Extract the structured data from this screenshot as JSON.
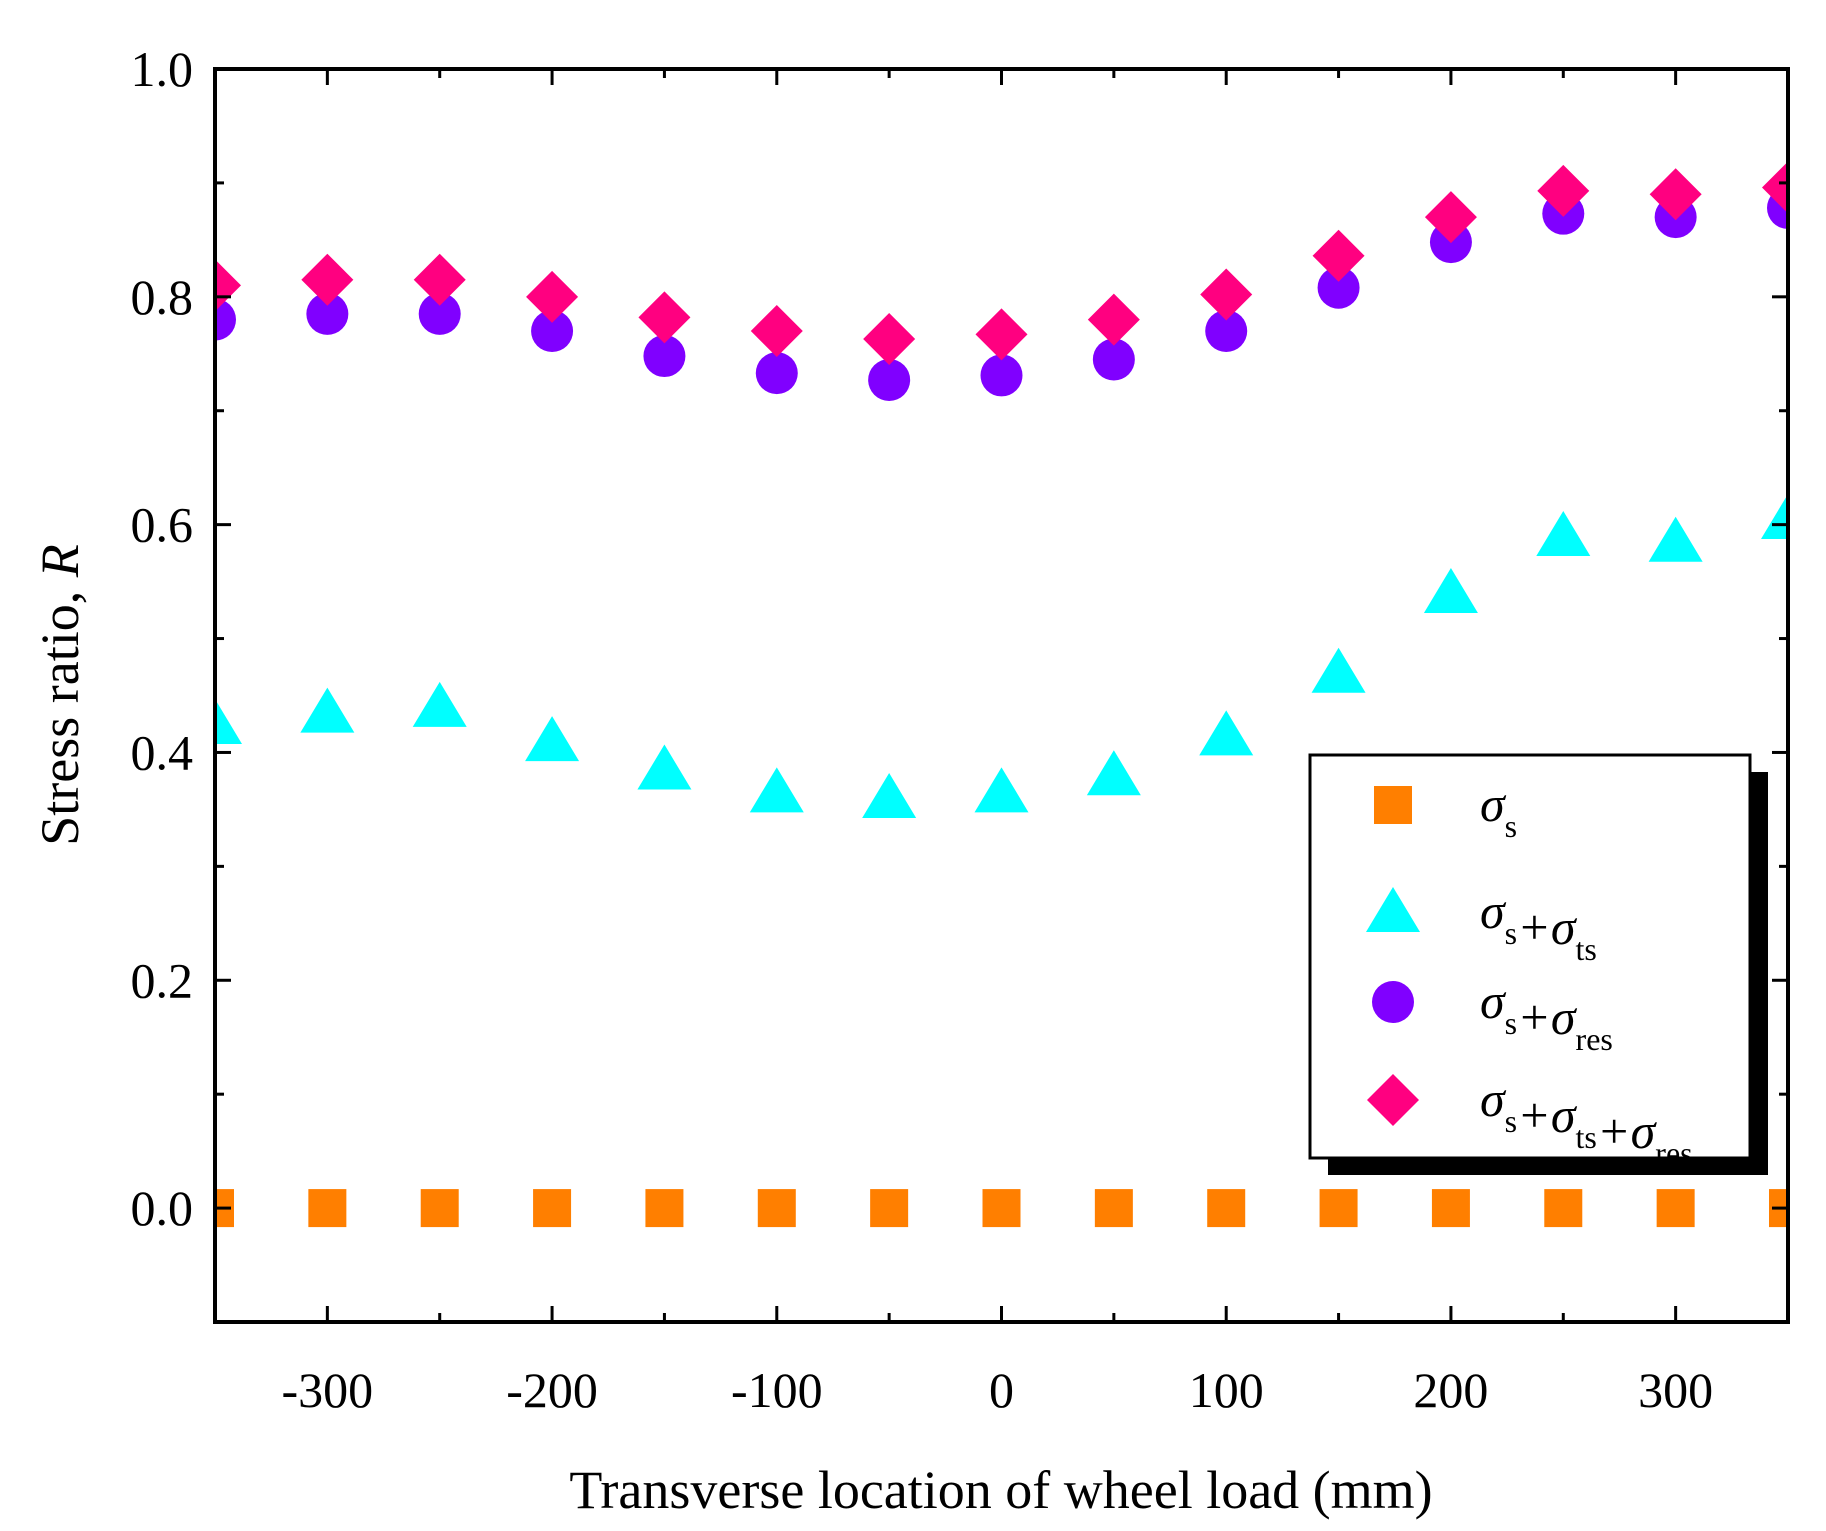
{
  "chart_data": {
    "type": "scatter",
    "title": "",
    "xlabel": "Transverse location of wheel load (mm)",
    "ylabel_main": "Stress ratio, ",
    "ylabel_var": "R",
    "xlim": [
      -350,
      350
    ],
    "ylim": [
      -0.1,
      1.0
    ],
    "xticks": [
      -300,
      -200,
      -100,
      0,
      100,
      200,
      300
    ],
    "xtick_labels": [
      "-300",
      "-200",
      "-100",
      "0",
      "100",
      "200",
      "300"
    ],
    "yticks": [
      0.0,
      0.2,
      0.4,
      0.6,
      0.8,
      1.0
    ],
    "ytick_labels": [
      "0.0",
      "0.2",
      "0.4",
      "0.6",
      "0.8",
      "1.0"
    ],
    "grid": false,
    "legend_position": "center-right",
    "x": [
      -350,
      -300,
      -250,
      -200,
      -150,
      -100,
      -50,
      0,
      50,
      100,
      150,
      200,
      250,
      300,
      350
    ],
    "series": [
      {
        "name": "σs",
        "legend_parts": [
          {
            "t": "σ",
            "sub": "s"
          }
        ],
        "marker": "square",
        "color": "#FF7F00",
        "values": [
          0.0,
          0.0,
          0.0,
          0.0,
          0.0,
          0.0,
          0.0,
          0.0,
          0.0,
          0.0,
          0.0,
          0.0,
          0.0,
          0.0,
          0.0
        ]
      },
      {
        "name": "σs+σts",
        "legend_parts": [
          {
            "t": "σ",
            "sub": "s"
          },
          {
            "t": "+σ",
            "sub": "ts"
          }
        ],
        "marker": "triangle",
        "color": "#00FFFF",
        "values": [
          0.425,
          0.435,
          0.44,
          0.41,
          0.385,
          0.365,
          0.36,
          0.365,
          0.38,
          0.415,
          0.47,
          0.54,
          0.59,
          0.585,
          0.605
        ]
      },
      {
        "name": "σs+σres",
        "legend_parts": [
          {
            "t": "σ",
            "sub": "s"
          },
          {
            "t": "+σ",
            "sub": "res"
          }
        ],
        "marker": "circle",
        "color": "#8000FF",
        "values": [
          0.78,
          0.785,
          0.785,
          0.77,
          0.748,
          0.733,
          0.727,
          0.731,
          0.745,
          0.77,
          0.808,
          0.848,
          0.873,
          0.87,
          0.878
        ]
      },
      {
        "name": "σs+σts+σres",
        "legend_parts": [
          {
            "t": "σ",
            "sub": "s"
          },
          {
            "t": "+σ",
            "sub": "ts"
          },
          {
            "t": "+σ",
            "sub": "res"
          }
        ],
        "marker": "diamond",
        "color": "#FF0080",
        "values": [
          0.81,
          0.815,
          0.815,
          0.8,
          0.782,
          0.77,
          0.763,
          0.767,
          0.78,
          0.802,
          0.836,
          0.87,
          0.893,
          0.89,
          0.896
        ]
      }
    ]
  }
}
